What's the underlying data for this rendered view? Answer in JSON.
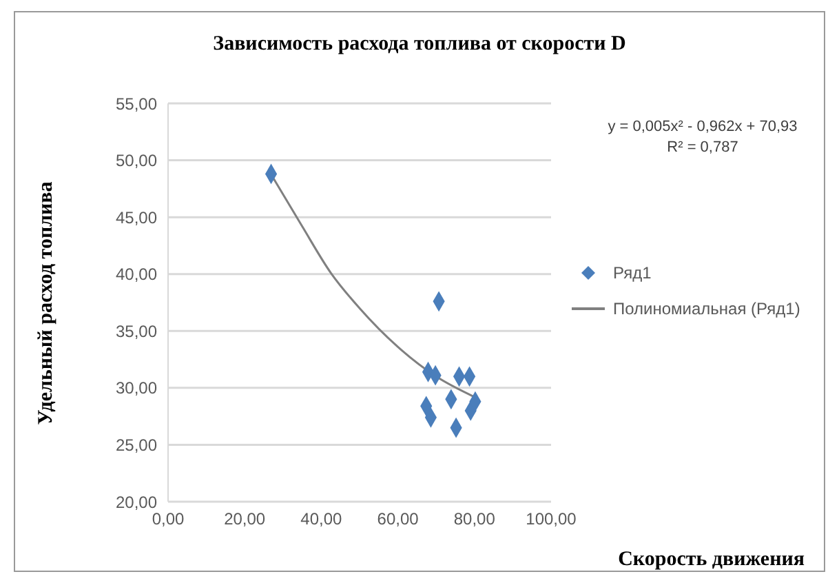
{
  "chart_data": {
    "type": "scatter",
    "title": "Зависимость расхода топлива от скорости D",
    "xlabel": "Скорость движения",
    "ylabel": "Удельный расход топлива",
    "annotations": [
      "y = 0,005x² - 0,962x + 70,93",
      "R² = 0,787"
    ],
    "xlim": [
      0,
      100
    ],
    "xticks": [
      {
        "value": 0,
        "label": "0,00"
      },
      {
        "value": 20,
        "label": "20,00"
      },
      {
        "value": 40,
        "label": "40,00"
      },
      {
        "value": 60,
        "label": "60,00"
      },
      {
        "value": 80,
        "label": "80,00"
      },
      {
        "value": 100,
        "label": "100,00"
      }
    ],
    "ylim": [
      20,
      55
    ],
    "yticks": [
      {
        "value": 20,
        "label": "20,00"
      },
      {
        "value": 25,
        "label": "25,00"
      },
      {
        "value": 30,
        "label": "30,00"
      },
      {
        "value": 35,
        "label": "35,00"
      },
      {
        "value": 40,
        "label": "40,00"
      },
      {
        "value": 45,
        "label": "45,00"
      },
      {
        "value": 50,
        "label": "50,00"
      },
      {
        "value": 55,
        "label": "55,00"
      }
    ],
    "grid": "y",
    "legend": "right",
    "series": [
      {
        "name": "Ряд1",
        "color": "#4a7ebb",
        "marker": "diamond",
        "x": [
          26.9,
          70.7,
          67.9,
          69.8,
          76.0,
          78.7,
          67.4,
          68.6,
          73.9,
          75.2,
          79.0,
          80.2
        ],
        "values": [
          48.8,
          37.6,
          31.4,
          31.1,
          31.0,
          31.0,
          28.4,
          27.4,
          29.0,
          26.5,
          28.0,
          28.8
        ]
      },
      {
        "name": "Полиномиальная (Ряд1)",
        "type": "line",
        "color": "#808080",
        "marker": "none",
        "line_style": "solid",
        "x": [
          27,
          35,
          42.5,
          50,
          60,
          70,
          80
        ],
        "values": [
          48.7,
          44.2,
          40.1,
          37.0,
          33.6,
          31.0,
          29.2
        ]
      }
    ]
  }
}
